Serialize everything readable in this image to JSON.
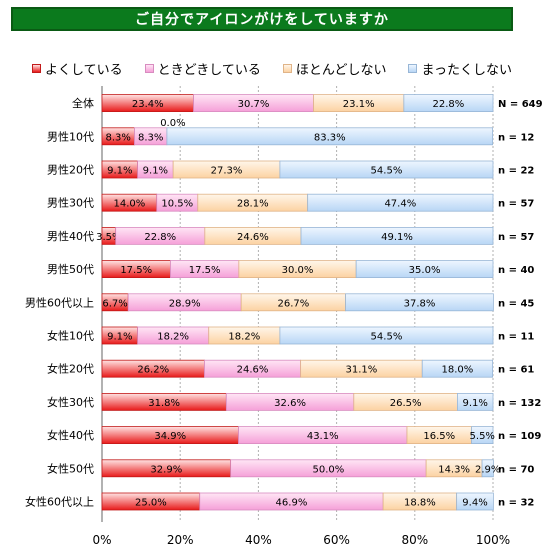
{
  "title": "ご自分でアイロンがけをしていますか",
  "colors": {
    "title_bg": "#0b7a1d",
    "series": [
      {
        "light": "#ffe3e3",
        "dark": "#e81a1a",
        "stroke": "#c21a1a"
      },
      {
        "light": "#ffe6f5",
        "dark": "#f5a0d8",
        "stroke": "#d88cc0"
      },
      {
        "light": "#fff6ea",
        "dark": "#fcd2a2",
        "stroke": "#e0b488"
      },
      {
        "light": "#eef6ff",
        "dark": "#b8d6f5",
        "stroke": "#98b6d6"
      }
    ]
  },
  "chart_data": {
    "type": "bar",
    "orientation": "horizontal",
    "stacked": true,
    "title": "ご自分でアイロンがけをしていますか",
    "legend_position": "top",
    "x_ticks": [
      "0%",
      "20%",
      "40%",
      "60%",
      "80%",
      "100%"
    ],
    "xlim": [
      0,
      100
    ],
    "grid": true,
    "categories": [
      "全体",
      "男性10代",
      "男性20代",
      "男性30代",
      "男性40代",
      "男性50代",
      "男性60代以上",
      "女性10代",
      "女性20代",
      "女性30代",
      "女性40代",
      "女性50代",
      "女性60代以上"
    ],
    "n_labels": [
      "N = 649",
      "n = 12",
      "n = 22",
      "n = 57",
      "n = 57",
      "n = 40",
      "n = 45",
      "n = 11",
      "n = 61",
      "n = 132",
      "n = 109",
      "n = 70",
      "n = 32"
    ],
    "series": [
      {
        "name": "よくしている",
        "values": [
          23.4,
          8.3,
          9.1,
          14.0,
          3.5,
          17.5,
          6.7,
          9.1,
          26.2,
          31.8,
          34.9,
          32.9,
          25.0
        ],
        "labels": [
          "23.4%",
          "8.3%",
          "9.1%",
          "14.0%",
          "3.5%",
          "17.5%",
          "6.7%",
          "9.1%",
          "26.2%",
          "31.8%",
          "34.9%",
          "32.9%",
          "25.0%"
        ]
      },
      {
        "name": "ときどきしている",
        "values": [
          30.7,
          8.3,
          9.1,
          10.5,
          22.8,
          17.5,
          28.9,
          18.2,
          24.6,
          32.6,
          43.1,
          50.0,
          46.9
        ],
        "labels": [
          "30.7%",
          "8.3%",
          "9.1%",
          "10.5%",
          "22.8%",
          "17.5%",
          "28.9%",
          "18.2%",
          "24.6%",
          "32.6%",
          "43.1%",
          "50.0%",
          "46.9%"
        ]
      },
      {
        "name": "ほとんどしない",
        "values": [
          23.1,
          0.0,
          27.3,
          28.1,
          24.6,
          30.0,
          26.7,
          18.2,
          31.1,
          26.5,
          16.5,
          14.3,
          18.8
        ],
        "labels": [
          "23.1%",
          "0.0%",
          "27.3%",
          "28.1%",
          "24.6%",
          "30.0%",
          "26.7%",
          "18.2%",
          "31.1%",
          "26.5%",
          "16.5%",
          "14.3%",
          "18.8%"
        ]
      },
      {
        "name": "まったくしない",
        "values": [
          22.8,
          83.3,
          54.5,
          47.4,
          49.1,
          35.0,
          37.8,
          54.5,
          18.0,
          9.1,
          5.5,
          2.9,
          9.4
        ],
        "labels": [
          "22.8%",
          "83.3%",
          "54.5%",
          "47.4%",
          "49.1%",
          "35.0%",
          "37.8%",
          "54.5%",
          "18.0%",
          "9.1%",
          "5.5%",
          "2.9%",
          "9.4%"
        ]
      }
    ]
  }
}
